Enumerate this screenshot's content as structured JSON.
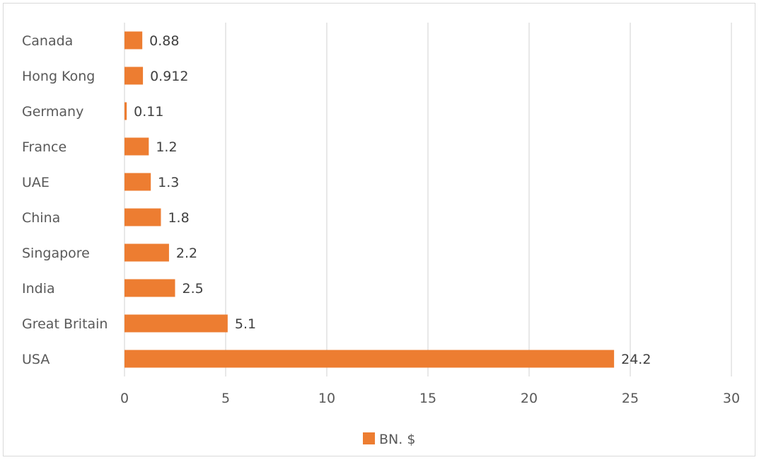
{
  "chart_data": {
    "type": "bar",
    "orientation": "horizontal",
    "categories": [
      "Canada",
      "Hong Kong",
      "Germany",
      "France",
      "UAE",
      "China",
      "Singapore",
      "India",
      "Great Britain",
      "USA"
    ],
    "series": [
      {
        "name": "BN. $",
        "color": "#ED7D31",
        "values": [
          0.88,
          0.912,
          0.11,
          1.2,
          1.3,
          1.8,
          2.2,
          2.5,
          5.1,
          24.2
        ],
        "value_labels": [
          "0.88",
          "0.912",
          "0.11",
          "1.2",
          "1.3",
          "1.8",
          "2.2",
          "2.5",
          "5.1",
          "24.2"
        ]
      }
    ],
    "x_ticks": [
      "0",
      "5",
      "10",
      "15",
      "20",
      "25",
      "30"
    ],
    "xlim": [
      0,
      30
    ],
    "grid": "vertical",
    "legend_position": "bottom",
    "gridline_color": "#d9d9d9"
  }
}
